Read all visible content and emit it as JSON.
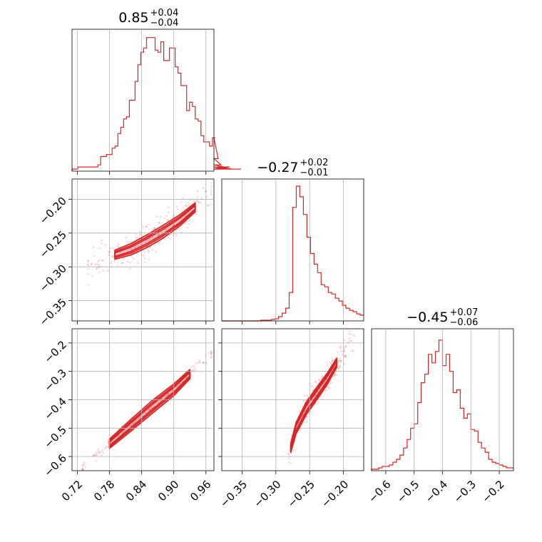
{
  "chart_data": {
    "type": "corner",
    "color": "#d62728",
    "panels": [
      {
        "kind": "hist",
        "row": 0,
        "col": 0,
        "title": {
          "value": "0.85",
          "plus": "+0.04",
          "minus": "−0.04"
        },
        "xlim": [
          0.71,
          0.975
        ],
        "bins_start": 0.71,
        "bin_width": 0.00535,
        "counts": [
          1,
          1,
          2,
          2,
          2,
          2,
          2,
          2,
          2,
          3,
          7,
          7,
          8,
          8,
          11,
          12,
          18,
          21,
          25,
          26,
          34,
          34,
          43,
          51,
          57,
          59,
          64,
          64,
          64,
          58,
          57,
          62,
          53,
          53,
          59,
          59,
          50,
          47,
          41,
          41,
          29,
          33,
          31,
          25,
          24,
          17,
          14,
          14,
          12,
          16,
          16,
          6,
          3,
          2,
          1,
          2,
          1,
          1,
          1,
          1
        ],
        "xticks": [
          0.72,
          0.78,
          0.84,
          0.9,
          0.96
        ],
        "ylim": [
          0,
          68
        ]
      },
      {
        "kind": "hist",
        "row": 1,
        "col": 1,
        "title": {
          "value": "−0.27",
          "plus": "+0.02",
          "minus": "−0.01"
        },
        "xlim": [
          -0.38,
          -0.17
        ],
        "bins_start": -0.38,
        "bin_width": 0.00525,
        "counts": [
          0,
          0,
          0,
          0,
          0,
          0,
          0,
          0,
          0,
          0,
          0,
          1,
          1,
          1,
          2,
          3,
          6,
          11,
          18,
          40,
          160,
          190,
          175,
          150,
          118,
          95,
          80,
          68,
          51,
          48,
          40,
          38,
          32,
          28,
          22,
          18,
          15,
          13,
          10,
          8
        ],
        "xticks": [
          -0.35,
          -0.3,
          -0.25,
          -0.2
        ],
        "ylim": [
          0,
          200
        ]
      },
      {
        "kind": "hist",
        "row": 2,
        "col": 2,
        "title": {
          "value": "−0.45",
          "plus": "+0.07",
          "minus": "−0.06"
        },
        "xlim": [
          -0.65,
          -0.15
        ],
        "bins_start": -0.65,
        "bin_width": 0.0125,
        "counts": [
          1,
          1,
          2,
          3,
          3,
          4,
          6,
          8,
          11,
          16,
          22,
          30,
          33,
          48,
          62,
          68,
          82,
          76,
          84,
          92,
          74,
          82,
          70,
          55,
          57,
          44,
          37,
          40,
          29,
          28,
          20,
          16,
          13,
          8,
          6,
          5,
          4,
          3,
          2,
          2
        ],
        "xticks": [
          -0.6,
          -0.5,
          -0.4,
          -0.3,
          -0.2
        ],
        "ylim": [
          0,
          100
        ]
      },
      {
        "kind": "scatter",
        "row": 1,
        "col": 0,
        "xlim": [
          0.71,
          0.975
        ],
        "ylim": [
          -0.38,
          -0.17
        ],
        "yticks": [
          -0.2,
          -0.25,
          -0.3,
          -0.35
        ],
        "ridge_x": [
          0.79,
          0.82,
          0.85,
          0.88,
          0.91,
          0.94
        ],
        "ridge_y": [
          -0.282,
          -0.274,
          -0.262,
          -0.248,
          -0.232,
          -0.212
        ],
        "scatter_x_range": [
          0.74,
          0.97
        ],
        "scatter_y_spread": 0.015
      },
      {
        "kind": "scatter",
        "row": 2,
        "col": 0,
        "xlim": [
          0.71,
          0.975
        ],
        "ylim": [
          -0.65,
          -0.15
        ],
        "xticks": [
          0.72,
          0.78,
          0.84,
          0.9,
          0.96
        ],
        "yticks": [
          -0.2,
          -0.3,
          -0.4,
          -0.5,
          -0.6
        ],
        "ridge_x": [
          0.78,
          0.82,
          0.86,
          0.9,
          0.93
        ],
        "ridge_y": [
          -0.555,
          -0.49,
          -0.425,
          -0.365,
          -0.31
        ],
        "scatter_x_range": [
          0.73,
          0.97
        ],
        "scatter_y_spread": 0.012
      },
      {
        "kind": "scatter",
        "row": 2,
        "col": 1,
        "xlim": [
          -0.38,
          -0.17
        ],
        "ylim": [
          -0.65,
          -0.15
        ],
        "xticks": [
          -0.35,
          -0.3,
          -0.25,
          -0.2
        ],
        "ridge_x": [
          -0.278,
          -0.27,
          -0.255,
          -0.24,
          -0.225,
          -0.21
        ],
        "ridge_y": [
          -0.57,
          -0.5,
          -0.43,
          -0.38,
          -0.33,
          -0.27
        ],
        "scatter_x_range": [
          -0.29,
          -0.18
        ],
        "scatter_y_spread": 0.03
      }
    ]
  }
}
